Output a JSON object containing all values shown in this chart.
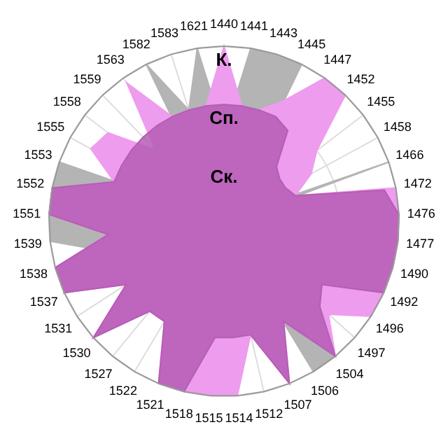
{
  "chart_data": {
    "type": "radar",
    "categories": [
      "1440",
      "1441",
      "1443",
      "1445",
      "1447",
      "1452",
      "1455",
      "1458",
      "1466",
      "1472",
      "1476",
      "1477",
      "1490",
      "1492",
      "1496",
      "1497",
      "1504",
      "1506",
      "1507",
      "1512",
      "1514",
      "1515",
      "1518",
      "1521",
      "1522",
      "1527",
      "1530",
      "1531",
      "1537",
      "1538",
      "1539",
      "1551",
      "1552",
      "1553",
      "1555",
      "1558",
      "1559",
      "1563",
      "1582",
      "1583",
      "1621"
    ],
    "ylim": [
      0,
      3
    ],
    "yticks": [
      {
        "value": 1,
        "label": "Ск."
      },
      {
        "value": 2,
        "label": "Сп."
      },
      {
        "value": 3,
        "label": "К."
      }
    ],
    "grid": true,
    "series": [
      {
        "color": "#b4b4b4",
        "values": [
          1.5,
          3,
          3,
          3,
          0.2,
          0.2,
          0.2,
          0.2,
          3,
          0.2,
          0.2,
          0.2,
          0.2,
          0.2,
          0.2,
          0.2,
          3,
          3,
          0.2,
          0.2,
          0.2,
          0.2,
          0.2,
          0.2,
          0.2,
          0.2,
          3,
          1.8,
          3,
          2,
          3,
          3,
          3,
          3,
          0.2,
          0.2,
          0.2,
          0.2,
          3,
          2,
          3
        ]
      },
      {
        "color": "#ee9cee",
        "values": [
          3,
          2,
          2,
          2.3,
          3,
          3,
          2,
          1.7,
          1.3,
          3,
          3,
          3,
          3,
          3,
          3,
          2.4,
          3,
          2,
          3,
          2,
          3,
          3,
          3,
          3,
          2,
          2,
          3,
          2,
          3,
          3,
          2,
          3,
          3,
          2,
          2.6,
          2.5,
          1.7,
          2.9,
          2,
          2,
          2
        ]
      },
      {
        "color": "#b55db5",
        "values": [
          2,
          2,
          2,
          2,
          1.9,
          1.3,
          1.2,
          1.2,
          1.3,
          2.8,
          3,
          3,
          3,
          3,
          2,
          2.2,
          3,
          2,
          3,
          2,
          2,
          2,
          3,
          3,
          2,
          2,
          3,
          2,
          3,
          3,
          2,
          3,
          3,
          2,
          2,
          2,
          2,
          2,
          2,
          2,
          2
        ]
      }
    ]
  }
}
